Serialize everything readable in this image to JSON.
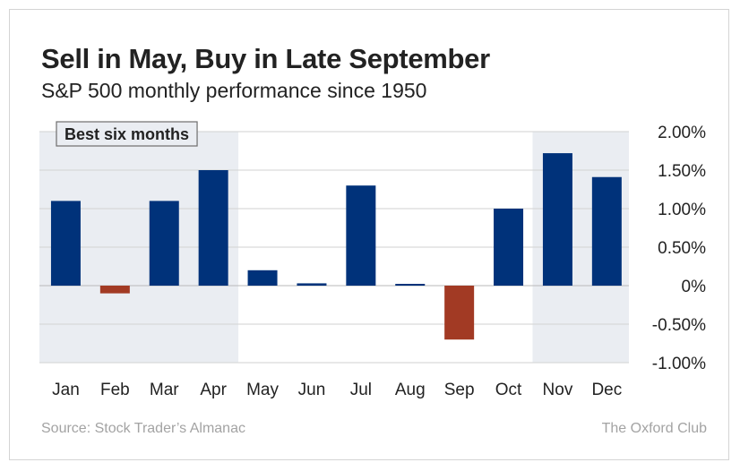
{
  "title": "Sell in May, Buy in Late September",
  "subtitle": "S&P 500 monthly performance since 1950",
  "source": "Source: Stock Trader’s Almanac",
  "credit": "The Oxford Club",
  "colors": {
    "positive": "#00327a",
    "negative": "#a23a24",
    "shade": "#eaedf2",
    "grid": "#d2d2d2",
    "axis_text": "#222222"
  },
  "chart_data": {
    "type": "bar",
    "categories": [
      "Jan",
      "Feb",
      "Mar",
      "Apr",
      "May",
      "Jun",
      "Jul",
      "Aug",
      "Sep",
      "Oct",
      "Nov",
      "Dec"
    ],
    "values": [
      1.1,
      -0.1,
      1.1,
      1.5,
      0.2,
      0.03,
      1.3,
      0.01,
      -0.7,
      1.0,
      1.72,
      1.41
    ],
    "ylim": [
      -1.0,
      2.0
    ],
    "yticks": [
      2.0,
      1.5,
      1.0,
      0.5,
      0,
      -0.5,
      -1.0
    ],
    "ytick_labels": [
      "2.00%",
      "1.50%",
      "1.00%",
      "0.50%",
      "0%",
      "-0.50%",
      "-1.00%"
    ],
    "y_axis_side": "right",
    "grid": true,
    "highlight": {
      "label": "Best six months",
      "months": [
        "Jan",
        "Feb",
        "Mar",
        "Apr",
        "Nov",
        "Dec"
      ]
    }
  }
}
